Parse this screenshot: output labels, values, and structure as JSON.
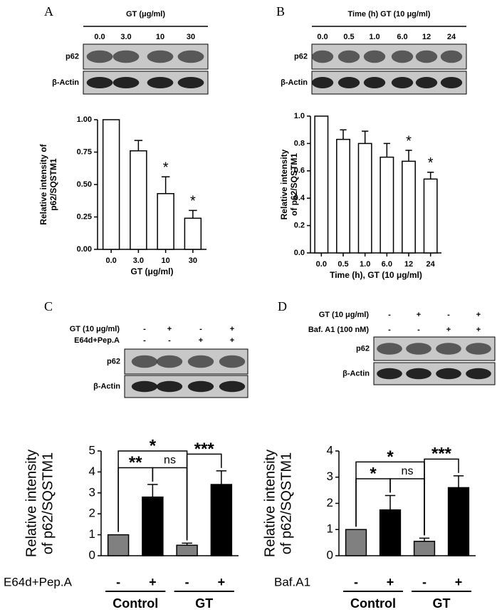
{
  "panels": [
    {
      "letter": "A",
      "header": "GT (μg/ml)",
      "lanes": [
        "0.0",
        "3.0",
        "10",
        "30"
      ],
      "rows": [
        "p62",
        "β-Actin"
      ]
    },
    {
      "letter": "B",
      "header": "Time (h) GT (10 μg/ml)",
      "lanes": [
        "0.0",
        "0.5",
        "1.0",
        "6.0",
        "12",
        "24"
      ],
      "rows": [
        "p62",
        "β-Actin"
      ]
    },
    {
      "letter": "C",
      "conditions": [
        {
          "label": "GT (10 μg/ml)",
          "signs": [
            "-",
            "+",
            "-",
            "+"
          ]
        },
        {
          "label": "E64d+Pep.A",
          "signs": [
            "-",
            "-",
            "+",
            "+"
          ]
        }
      ],
      "rows": [
        "p62",
        "β-Actin"
      ]
    },
    {
      "letter": "D",
      "conditions": [
        {
          "label": "GT (10 μg/ml)",
          "signs": [
            "-",
            "+",
            "-",
            "+"
          ]
        },
        {
          "label": "Baf. A1 (100 nM)",
          "signs": [
            "-",
            "-",
            "+",
            "+"
          ]
        }
      ],
      "rows": [
        "p62",
        "β-Actin"
      ]
    }
  ],
  "chart_data": [
    {
      "type": "bar",
      "categories": [
        "0.0",
        "3.0",
        "10",
        "30"
      ],
      "values": [
        1.0,
        0.76,
        0.43,
        0.24
      ],
      "errors": [
        null,
        0.08,
        0.13,
        0.06
      ],
      "colors": [
        "#ffffff",
        "#ffffff",
        "#ffffff",
        "#ffffff"
      ],
      "xlabel": "GT (μg/ml)",
      "ylabel": [
        "Relative intensity of",
        "p62/SQSTM1"
      ],
      "ylim": [
        0,
        1
      ],
      "yticks": [
        {
          "value": 0,
          "label": "0.00"
        },
        {
          "value": 0.25,
          "label": "0.25"
        },
        {
          "value": 0.5,
          "label": "0.50"
        },
        {
          "value": 0.75,
          "label": "0.75"
        },
        {
          "value": 1,
          "label": "1.00"
        }
      ],
      "annotations": [
        {
          "index": 2,
          "text": "*"
        },
        {
          "index": 3,
          "text": "*"
        }
      ]
    },
    {
      "type": "bar",
      "categories": [
        "0.0",
        "0.5",
        "1.0",
        "6.0",
        "12",
        "24"
      ],
      "values": [
        1.0,
        0.83,
        0.8,
        0.7,
        0.67,
        0.54
      ],
      "errors": [
        null,
        0.07,
        0.09,
        0.1,
        0.08,
        0.05
      ],
      "colors": [
        "#ffffff",
        "#ffffff",
        "#ffffff",
        "#ffffff",
        "#ffffff",
        "#ffffff"
      ],
      "xlabel": "Time (h), GT (10 μg/ml)",
      "ylabel": [
        "Relative intensity",
        "of p62/SQSTM1"
      ],
      "ylim": [
        0,
        1
      ],
      "yticks": [
        {
          "value": 0,
          "label": "0.0"
        },
        0.2,
        0.4,
        0.6,
        0.8,
        {
          "value": 1,
          "label": "1.0"
        }
      ],
      "annotations": [
        {
          "index": 4,
          "text": "*"
        },
        {
          "index": 5,
          "text": "*"
        }
      ]
    },
    {
      "type": "bar",
      "categories": [
        "-",
        "+",
        "-",
        "+"
      ],
      "values": [
        1.0,
        2.8,
        0.5,
        3.4
      ],
      "errors": [
        null,
        0.6,
        0.1,
        0.65
      ],
      "colors": [
        "#808080",
        "#000000",
        "#808080",
        "#000000"
      ],
      "treatment": "E64d+Pep.A",
      "ylabel": [
        "Relative intensity",
        "of p62/SQSTM1"
      ],
      "ylim": [
        0,
        5
      ],
      "yticks": [
        0,
        1,
        2,
        3,
        4,
        5
      ],
      "groups": [
        {
          "label": "Control",
          "from": 0,
          "to": 1
        },
        {
          "label": "GT",
          "from": 2,
          "to": 3
        }
      ],
      "brackets": [
        {
          "from": 0,
          "to": 1,
          "label": "**"
        },
        {
          "from": 2,
          "to": 3,
          "label": "***"
        },
        {
          "from": 1,
          "to": 2,
          "label": "ns"
        },
        {
          "from": 0,
          "to": 2,
          "label": "*"
        }
      ]
    },
    {
      "type": "bar",
      "categories": [
        "-",
        "+",
        "-",
        "+"
      ],
      "values": [
        1.0,
        1.75,
        0.55,
        2.6
      ],
      "errors": [
        null,
        0.55,
        0.12,
        0.45
      ],
      "colors": [
        "#808080",
        "#000000",
        "#808080",
        "#000000"
      ],
      "treatment": "Baf.A1",
      "ylabel": [
        "Relative intensity",
        "of p62/SQSTM1"
      ],
      "ylim": [
        0,
        4
      ],
      "yticks": [
        0,
        1,
        2,
        3,
        4
      ],
      "groups": [
        {
          "label": "Control",
          "from": 0,
          "to": 1
        },
        {
          "label": "GT",
          "from": 2,
          "to": 3
        }
      ],
      "brackets": [
        {
          "from": 0,
          "to": 1,
          "label": "*"
        },
        {
          "from": 2,
          "to": 3,
          "label": "***"
        },
        {
          "from": 1,
          "to": 2,
          "label": "ns"
        },
        {
          "from": 0,
          "to": 2,
          "label": "*"
        }
      ]
    }
  ]
}
